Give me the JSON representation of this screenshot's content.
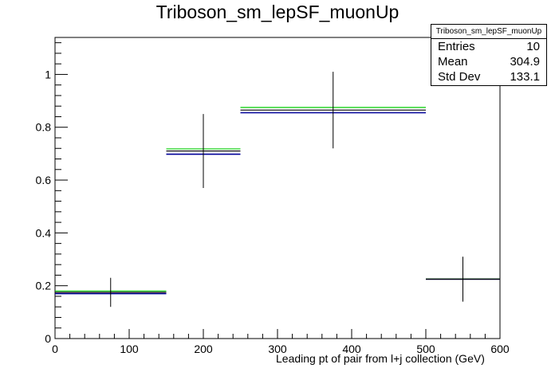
{
  "chart_data": {
    "type": "histogram",
    "title": "Triboson_sm_lepSF_muonUp",
    "xlabel": "Leading pt of pair from l+j collection (GeV)",
    "ylabel": "",
    "xlim": [
      0,
      600
    ],
    "ylim": [
      0,
      1.14
    ],
    "x_ticks": [
      0,
      100,
      200,
      300,
      400,
      500,
      600
    ],
    "y_ticks": [
      0,
      0.2,
      0.4,
      0.6,
      0.8,
      1
    ],
    "bins": [
      [
        0,
        150
      ],
      [
        150,
        250
      ],
      [
        250,
        500
      ],
      [
        500,
        600
      ]
    ],
    "series": [
      {
        "color": "#000000",
        "values": [
          0.175,
          0.71,
          0.865,
          0.225
        ],
        "errors": [
          0.055,
          0.14,
          0.145,
          0.085
        ]
      },
      {
        "color": "#00cc00",
        "values": [
          0.18,
          0.718,
          0.875,
          0.225
        ]
      },
      {
        "color": "#000099",
        "values": [
          0.17,
          0.698,
          0.855,
          0.225
        ]
      }
    ],
    "stats": {
      "header": "Triboson_sm_lepSF_muonUp",
      "rows": [
        {
          "label": "Entries",
          "value": "10"
        },
        {
          "label": "Mean",
          "value": "304.9"
        },
        {
          "label": "Std Dev",
          "value": "133.1"
        }
      ]
    }
  }
}
